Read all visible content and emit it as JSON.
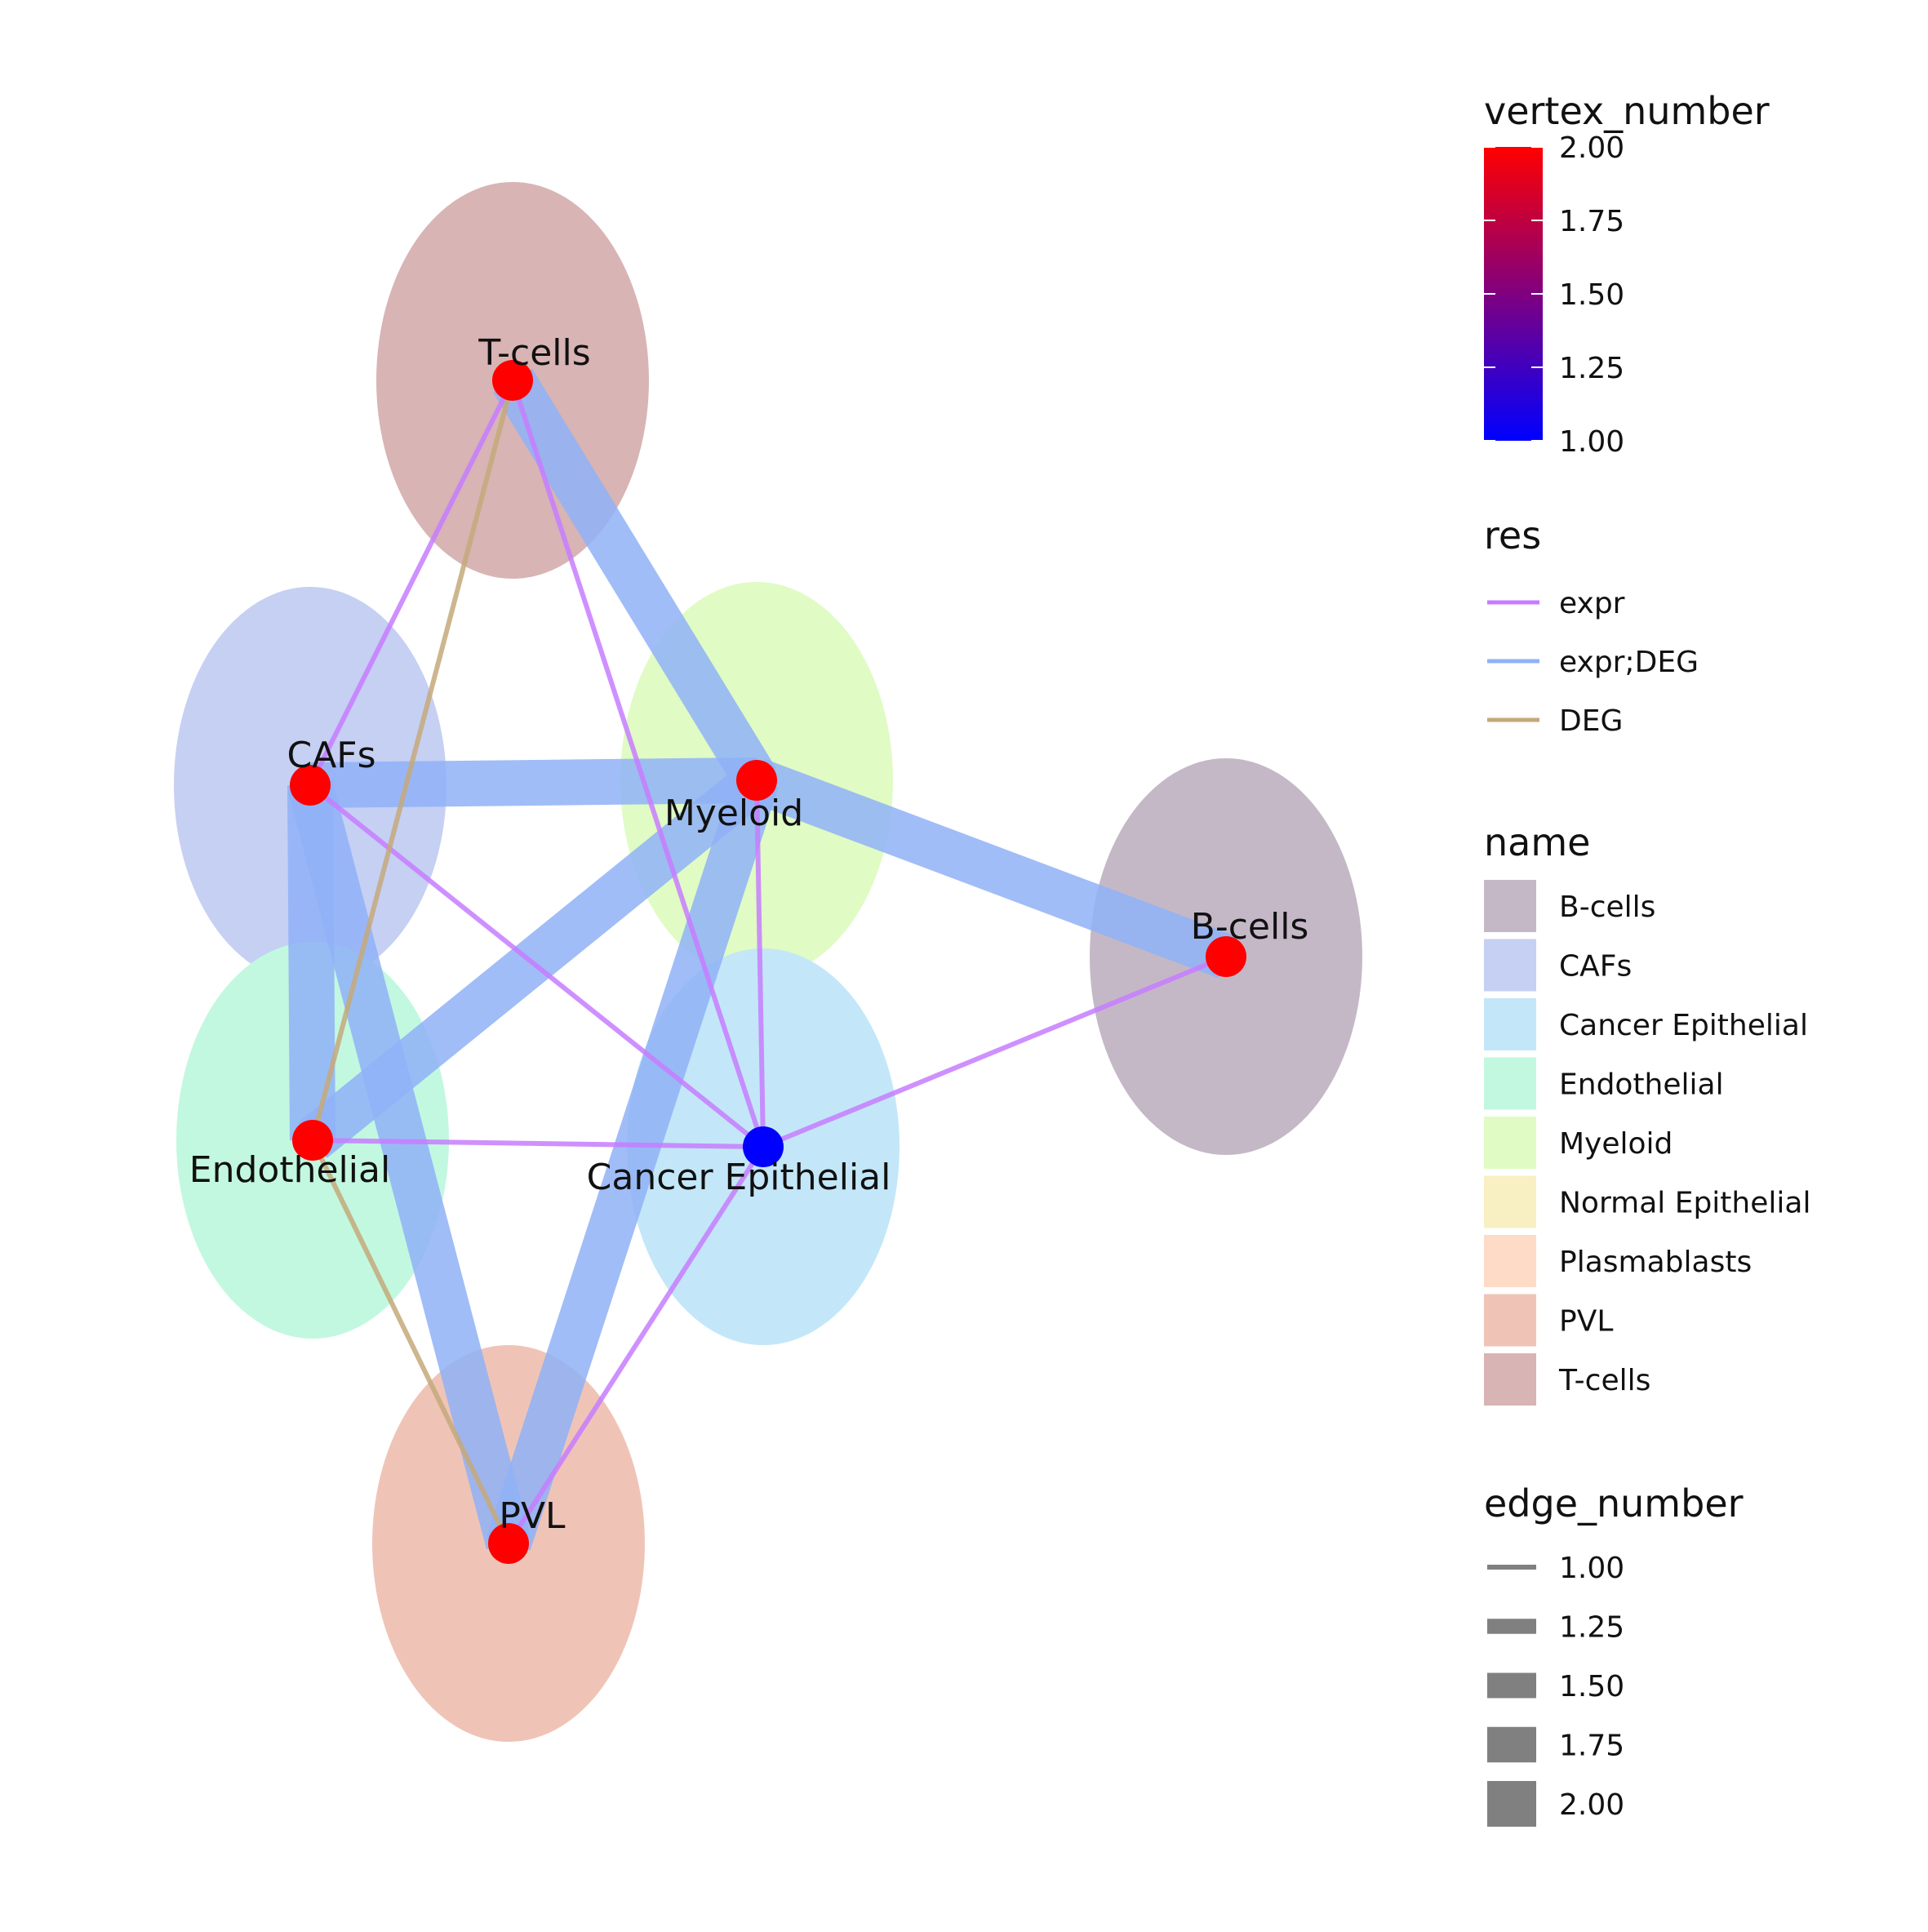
{
  "nodes": [
    {
      "id": "T-cells",
      "label": "T-cells",
      "vertex_number": 2,
      "color": "#d8b4b4"
    },
    {
      "id": "CAFs",
      "label": "CAFs",
      "vertex_number": 2,
      "color": "#c5d0f3"
    },
    {
      "id": "Myeloid",
      "label": "Myeloid",
      "vertex_number": 2,
      "color": "#e0fbc4"
    },
    {
      "id": "B-cells",
      "label": "B-cells",
      "vertex_number": 2,
      "color": "#c4b8c7"
    },
    {
      "id": "Endothelial",
      "label": "Endothelial",
      "vertex_number": 2,
      "color": "#c2f8e0"
    },
    {
      "id": "Cancer Epithelial",
      "label": "Cancer Epithelial",
      "vertex_number": 1,
      "color": "#c3e7f8"
    },
    {
      "id": "PVL",
      "label": "PVL",
      "vertex_number": 2,
      "color": "#efc4b7"
    }
  ],
  "edges": [
    {
      "from": "T-cells",
      "to": "Myeloid",
      "res": "expr;DEG",
      "edge_number": 2
    },
    {
      "from": "CAFs",
      "to": "Myeloid",
      "res": "expr;DEG",
      "edge_number": 2
    },
    {
      "from": "Myeloid",
      "to": "B-cells",
      "res": "expr;DEG",
      "edge_number": 2
    },
    {
      "from": "Myeloid",
      "to": "Endothelial",
      "res": "expr;DEG",
      "edge_number": 2
    },
    {
      "from": "CAFs",
      "to": "Endothelial",
      "res": "expr;DEG",
      "edge_number": 2
    },
    {
      "from": "CAFs",
      "to": "PVL",
      "res": "expr;DEG",
      "edge_number": 2
    },
    {
      "from": "Myeloid",
      "to": "PVL",
      "res": "expr;DEG",
      "edge_number": 2
    },
    {
      "from": "T-cells",
      "to": "CAFs",
      "res": "expr",
      "edge_number": 1
    },
    {
      "from": "T-cells",
      "to": "Cancer Epithelial",
      "res": "expr",
      "edge_number": 1
    },
    {
      "from": "CAFs",
      "to": "Cancer Epithelial",
      "res": "expr",
      "edge_number": 1
    },
    {
      "from": "Myeloid",
      "to": "Cancer Epithelial",
      "res": "expr",
      "edge_number": 1
    },
    {
      "from": "Endothelial",
      "to": "Cancer Epithelial",
      "res": "expr",
      "edge_number": 1
    },
    {
      "from": "B-cells",
      "to": "Cancer Epithelial",
      "res": "expr",
      "edge_number": 1
    },
    {
      "from": "Cancer Epithelial",
      "to": "PVL",
      "res": "expr",
      "edge_number": 1
    },
    {
      "from": "T-cells",
      "to": "Endothelial",
      "res": "DEG",
      "edge_number": 1
    },
    {
      "from": "Endothelial",
      "to": "PVL",
      "res": "DEG",
      "edge_number": 1
    }
  ],
  "legend": {
    "vertex_number": {
      "title": "vertex_number",
      "low_color": "#0000ff",
      "high_color": "#ff0000",
      "ticks": [
        "2.00",
        "1.75",
        "1.50",
        "1.25",
        "1.00"
      ]
    },
    "res": {
      "title": "res",
      "items": [
        {
          "label": "expr",
          "color": "#c77cff"
        },
        {
          "label": "expr;DEG",
          "color": "#8fb2f7"
        },
        {
          "label": "DEG",
          "color": "#c4a97a"
        }
      ]
    },
    "name": {
      "title": "name",
      "items": [
        {
          "label": "B-cells",
          "color": "#c4b8c7"
        },
        {
          "label": "CAFs",
          "color": "#c5d0f3"
        },
        {
          "label": "Cancer Epithelial",
          "color": "#c3e7f8"
        },
        {
          "label": "Endothelial",
          "color": "#c2f8e0"
        },
        {
          "label": "Myeloid",
          "color": "#e0fbc4"
        },
        {
          "label": "Normal Epithelial",
          "color": "#f8f0c2"
        },
        {
          "label": "Plasmablasts",
          "color": "#fddbc7"
        },
        {
          "label": "PVL",
          "color": "#efc4b7"
        },
        {
          "label": "T-cells",
          "color": "#d8b4b4"
        }
      ]
    },
    "edge_number": {
      "title": "edge_number",
      "color": "#808080",
      "items": [
        {
          "label": "1.00",
          "value": 1.0
        },
        {
          "label": "1.25",
          "value": 1.25
        },
        {
          "label": "1.50",
          "value": 1.5
        },
        {
          "label": "1.75",
          "value": 1.75
        },
        {
          "label": "2.00",
          "value": 2.0
        }
      ]
    }
  }
}
